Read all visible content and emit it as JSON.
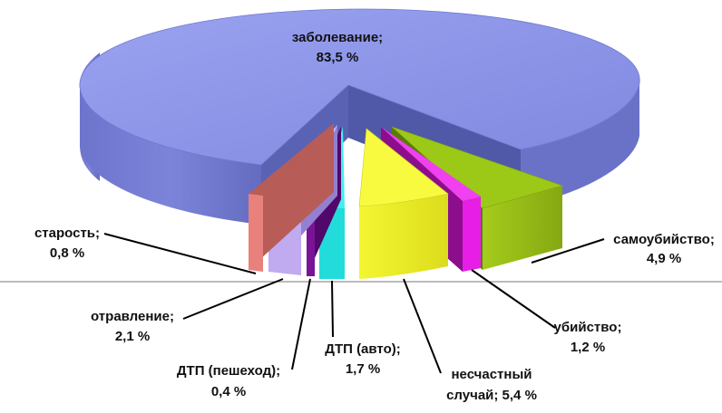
{
  "chart_data": {
    "type": "pie",
    "title": "",
    "slices": [
      {
        "label": "заболевание;",
        "value_text": "83,5 %",
        "value": 83.5,
        "color": "#8f97e8"
      },
      {
        "label": "самоубийство;",
        "value_text": "4,9 %",
        "value": 4.9,
        "color": "#8fb414"
      },
      {
        "label": "убийство;",
        "value_text": "1,2 %",
        "value": 1.2,
        "color": "#e61ee6"
      },
      {
        "label": "несчастный",
        "label2": "случай; 5,4 %",
        "value": 5.4,
        "color": "#e8ec28"
      },
      {
        "label": "ДТП (авто);",
        "value_text": "1,7 %",
        "value": 1.7,
        "color": "#22dcdc"
      },
      {
        "label": "ДТП (пешеход);",
        "value_text": "0,4 %",
        "value": 0.4,
        "color": "#7a1496"
      },
      {
        "label": "отравление;",
        "value_text": "2,1 %",
        "value": 2.1,
        "color": "#c0aaf0"
      },
      {
        "label": "старость;",
        "value_text": "0,8 %",
        "value": 0.8,
        "color": "#e8807c"
      }
    ]
  }
}
